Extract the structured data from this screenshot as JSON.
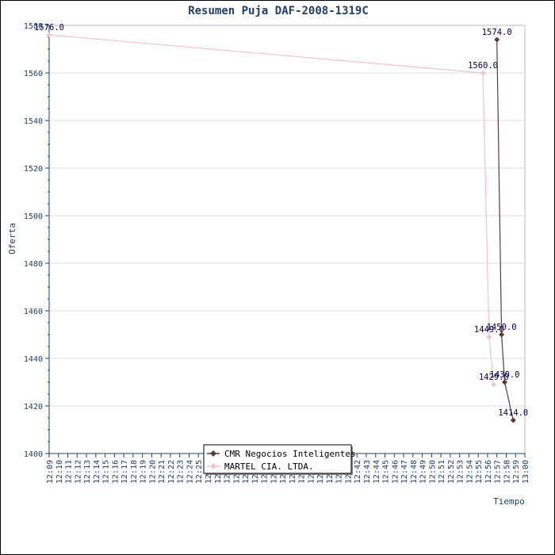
{
  "chart_data": {
    "type": "line",
    "title": "Resumen Puja DAF-2008-1319C",
    "xlabel": "Tiempo",
    "ylabel": "Oferta",
    "ylim": [
      1400,
      1580
    ],
    "yticks": [
      1400,
      1420,
      1440,
      1460,
      1480,
      1500,
      1520,
      1540,
      1560,
      1580
    ],
    "xlim": [
      "12:09",
      "13:00"
    ],
    "xtick_labels": [
      "12:09",
      "12:10",
      "12:11",
      "12:12",
      "12:13",
      "12:14",
      "12:15",
      "12:16",
      "12:17",
      "12:18",
      "12:19",
      "12:20",
      "12:21",
      "12:22",
      "12:23",
      "12:24",
      "12:25",
      "12:26",
      "12:27",
      "12:28",
      "12:29",
      "12:30",
      "12:31",
      "12:32",
      "12:33",
      "12:34",
      "12:35",
      "12:36",
      "12:37",
      "12:38",
      "12:39",
      "12:40",
      "12:41",
      "12:42",
      "12:43",
      "12:44",
      "12:45",
      "12:46",
      "12:47",
      "12:48",
      "12:49",
      "12:50",
      "12:51",
      "12:52",
      "12:53",
      "12:54",
      "12:55",
      "12:56",
      "12:57",
      "12:58",
      "12:59",
      "13:00"
    ],
    "grid": true,
    "legend_position": "bottom-center",
    "series": [
      {
        "name": "CMR Negocios Inteligentes",
        "color": "#5a3a3a",
        "marker": "diamond",
        "points": [
          {
            "x": "12:57:00",
            "y": 1574,
            "label": "1574.0"
          },
          {
            "x": "12:57:30",
            "y": 1450,
            "label": "1450.0"
          },
          {
            "x": "12:57:50",
            "y": 1430,
            "label": "1430.0"
          },
          {
            "x": "12:58:45",
            "y": 1414,
            "label": "1414.0"
          }
        ]
      },
      {
        "name": "MARTEL CIA. LTDA.",
        "color": "#f4c2cc",
        "marker": "diamond",
        "points": [
          {
            "x": "12:09:00",
            "y": 1576,
            "label": "1576.0"
          },
          {
            "x": "12:55:30",
            "y": 1560,
            "label": "1560.0"
          },
          {
            "x": "12:56:10",
            "y": 1449,
            "label": "1449.0"
          },
          {
            "x": "12:56:40",
            "y": 1429,
            "label": "1429.0"
          }
        ]
      }
    ]
  }
}
